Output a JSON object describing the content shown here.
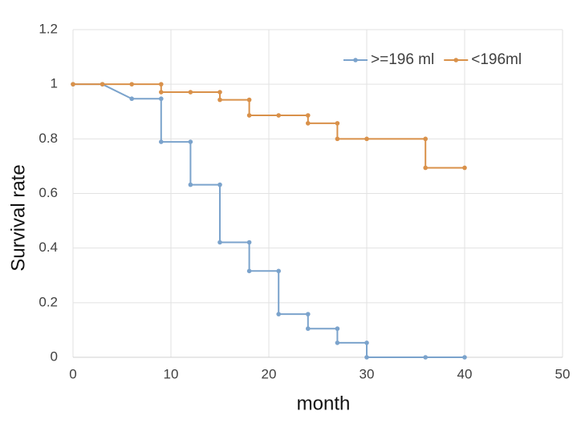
{
  "chart_data": {
    "type": "line",
    "step": true,
    "x_label": "month",
    "y_label": "Survival rate",
    "xlim": [
      0,
      50
    ],
    "xticks": [
      0,
      10,
      20,
      30,
      40,
      50
    ],
    "ylim": [
      0,
      1.2
    ],
    "yticks": [
      0,
      0.2,
      0.4,
      0.6,
      0.8,
      1,
      1.2
    ],
    "grid": true,
    "legend": "top-right",
    "series": [
      {
        "name": ">=196 ml",
        "color": "#7ba3cc",
        "x": [
          0,
          3,
          6,
          9,
          9,
          12,
          12,
          15,
          15,
          18,
          18,
          21,
          21,
          24,
          24,
          27,
          27,
          30,
          30,
          36,
          40
        ],
        "values": [
          1,
          1,
          0.947,
          0.947,
          0.789,
          0.789,
          0.632,
          0.632,
          0.421,
          0.421,
          0.316,
          0.316,
          0.158,
          0.158,
          0.105,
          0.105,
          0.053,
          0.053,
          0,
          0,
          0
        ]
      },
      {
        "name": "<196ml",
        "color": "#d9914a",
        "x": [
          0,
          3,
          6,
          9,
          9,
          12,
          15,
          15,
          18,
          18,
          21,
          24,
          24,
          27,
          27,
          30,
          36,
          36,
          40
        ],
        "values": [
          1,
          1,
          1,
          1,
          0.971,
          0.971,
          0.971,
          0.943,
          0.943,
          0.886,
          0.886,
          0.886,
          0.857,
          0.857,
          0.8,
          0.8,
          0.8,
          0.694,
          0.694
        ]
      }
    ]
  }
}
